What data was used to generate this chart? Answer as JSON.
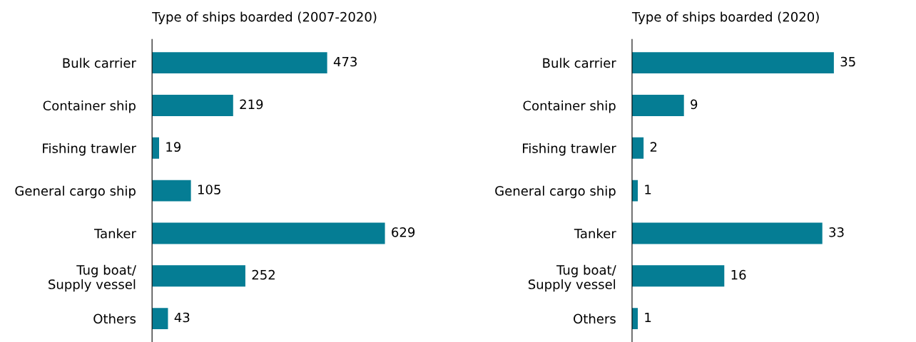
{
  "chart_data": [
    {
      "type": "bar",
      "orientation": "horizontal",
      "title": "Type of ships boarded (2007-2020)",
      "categories": [
        "Bulk carrier",
        "Container ship",
        "Fishing trawler",
        "General cargo ship",
        "Tanker",
        "Tug boat/\nSupply vessel",
        "Others"
      ],
      "values": [
        473,
        219,
        19,
        105,
        629,
        252,
        43
      ],
      "color": "#057d94",
      "data_labels": true,
      "grid": false,
      "legend": false
    },
    {
      "type": "bar",
      "orientation": "horizontal",
      "title": "Type of ships boarded (2020)",
      "categories": [
        "Bulk carrier",
        "Container ship",
        "Fishing trawler",
        "General cargo ship",
        "Tanker",
        "Tug boat/\nSupply vessel",
        "Others"
      ],
      "values": [
        35,
        9,
        2,
        1,
        33,
        16,
        1
      ],
      "color": "#057d94",
      "data_labels": true,
      "grid": false,
      "legend": false
    }
  ]
}
